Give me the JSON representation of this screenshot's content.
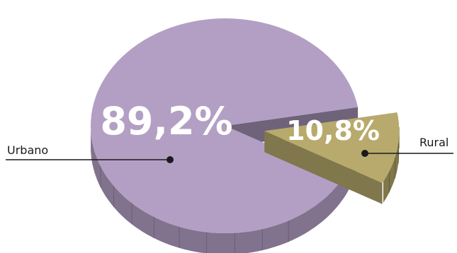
{
  "chart_data": {
    "type": "pie",
    "style": "3d-exploded",
    "categories": [
      "Urbano",
      "Rural"
    ],
    "values": [
      89.2,
      10.8
    ],
    "value_labels": [
      "89,2%",
      "10,8%"
    ],
    "unit": "%",
    "colors": {
      "Urbano": "#b39fc4",
      "Rural": "#b8aa6c"
    },
    "exploded": [
      "Rural"
    ],
    "title": "",
    "legend": "none"
  }
}
